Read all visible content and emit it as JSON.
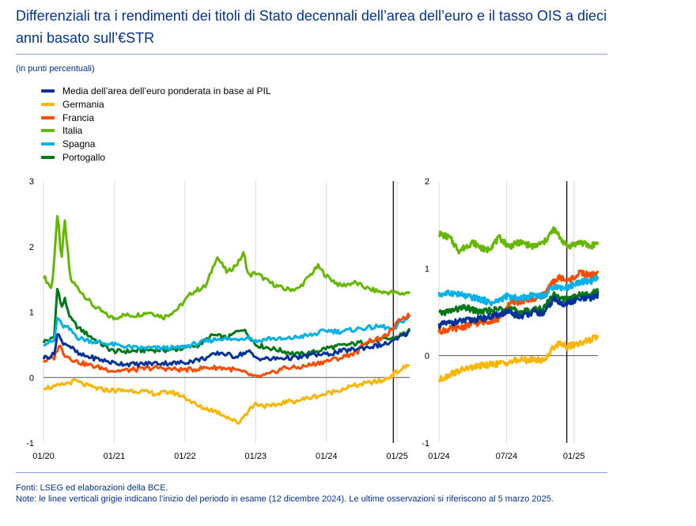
{
  "title": "Differenziali tra i rendimenti dei titoli di Stato decennali dell’area dell’euro e il tasso OIS a dieci anni basato sull’€STR",
  "units": "(in punti percentuali)",
  "legend": [
    {
      "label": "Media dell’area dell’euro ponderata in base al PIL",
      "color": "#003299"
    },
    {
      "label": "Germania",
      "color": "#ffb400"
    },
    {
      "label": "Francia",
      "color": "#ff4b00"
    },
    {
      "label": "Italia",
      "color": "#65b800"
    },
    {
      "label": "Spagna",
      "color": "#00b1ea"
    },
    {
      "label": "Portogallo",
      "color": "#007816"
    }
  ],
  "footer": {
    "sources": "Fonti: LSEG ed elaborazioni della BCE.",
    "note": "Note: le linee verticali grigie indicano l’inizio del periodo in esame (12 dicembre 2024). Le ultime osservazioni si riferiscono al 5 marzo 2025."
  },
  "chart_data": [
    {
      "type": "line",
      "panel": "left",
      "x_range": [
        "2020-01-01",
        "2025-03-05"
      ],
      "ylim": [
        -1,
        3
      ],
      "yticks": [
        "3",
        "2",
        "1",
        "0",
        "-1"
      ],
      "xticks": [
        "01/20",
        "01/21",
        "01/22",
        "01/23",
        "01/24",
        "01/25"
      ],
      "vline": "2024-12-12",
      "series": [
        {
          "name": "Italia",
          "color": "#65b800",
          "x": [
            2020.0,
            2020.12,
            2020.2,
            2020.25,
            2020.3,
            2020.38,
            2020.5,
            2020.7,
            2020.9,
            2021.0,
            2021.1,
            2021.3,
            2021.5,
            2021.7,
            2021.9,
            2022.1,
            2022.3,
            2022.45,
            2022.6,
            2022.75,
            2022.83,
            2022.9,
            2023.0,
            2023.2,
            2023.4,
            2023.6,
            2023.8,
            2023.88,
            2024.0,
            2024.2,
            2024.4,
            2024.6,
            2024.8,
            2024.95,
            2025.05,
            2025.18
          ],
          "values": [
            1.55,
            1.35,
            2.55,
            1.75,
            2.4,
            1.5,
            1.35,
            1.1,
            0.95,
            0.9,
            0.95,
            0.95,
            1.0,
            0.92,
            1.05,
            1.3,
            1.4,
            1.85,
            1.6,
            1.75,
            1.9,
            1.55,
            1.6,
            1.45,
            1.35,
            1.35,
            1.6,
            1.7,
            1.55,
            1.4,
            1.45,
            1.35,
            1.3,
            1.3,
            1.28,
            1.3
          ]
        },
        {
          "name": "Portogallo",
          "color": "#007816",
          "x": [
            2020.0,
            2020.15,
            2020.2,
            2020.25,
            2020.3,
            2020.38,
            2020.5,
            2020.7,
            2020.9,
            2021.0,
            2021.2,
            2021.5,
            2021.8,
            2022.0,
            2022.2,
            2022.4,
            2022.6,
            2022.8,
            2022.9,
            2023.0,
            2023.2,
            2023.4,
            2023.6,
            2023.8,
            2024.0,
            2024.3,
            2024.6,
            2024.8,
            2024.95,
            2025.05,
            2025.18
          ],
          "values": [
            0.55,
            0.6,
            1.45,
            1.05,
            1.2,
            0.9,
            0.75,
            0.6,
            0.45,
            0.4,
            0.4,
            0.42,
            0.42,
            0.45,
            0.5,
            0.65,
            0.6,
            0.75,
            0.65,
            0.5,
            0.45,
            0.4,
            0.35,
            0.38,
            0.45,
            0.5,
            0.55,
            0.58,
            0.6,
            0.65,
            0.72
          ]
        },
        {
          "name": "Spagna",
          "color": "#00b1ea",
          "x": [
            2020.0,
            2020.15,
            2020.2,
            2020.25,
            2020.35,
            2020.5,
            2020.7,
            2021.0,
            2021.3,
            2021.6,
            2021.9,
            2022.1,
            2022.3,
            2022.5,
            2022.7,
            2022.9,
            2023.0,
            2023.2,
            2023.4,
            2023.6,
            2023.8,
            2024.0,
            2024.2,
            2024.5,
            2024.8,
            2024.95,
            2025.05,
            2025.18
          ],
          "values": [
            0.52,
            0.55,
            0.95,
            0.8,
            0.75,
            0.6,
            0.55,
            0.5,
            0.45,
            0.45,
            0.45,
            0.5,
            0.55,
            0.6,
            0.58,
            0.62,
            0.55,
            0.6,
            0.58,
            0.62,
            0.65,
            0.72,
            0.7,
            0.75,
            0.78,
            0.72,
            0.85,
            0.92
          ]
        },
        {
          "name": "Francia",
          "color": "#ff4b00",
          "x": [
            2020.0,
            2020.15,
            2020.22,
            2020.3,
            2020.45,
            2020.6,
            2020.8,
            2021.0,
            2021.3,
            2021.6,
            2021.9,
            2022.1,
            2022.3,
            2022.5,
            2022.7,
            2022.9,
            2023.0,
            2023.2,
            2023.4,
            2023.6,
            2023.8,
            2024.0,
            2024.2,
            2024.45,
            2024.55,
            2024.8,
            2024.95,
            2025.05,
            2025.18
          ],
          "values": [
            0.25,
            0.3,
            0.5,
            0.35,
            0.25,
            0.2,
            0.15,
            0.1,
            0.12,
            0.15,
            0.12,
            0.12,
            0.15,
            0.15,
            0.12,
            0.05,
            0.0,
            0.05,
            0.15,
            0.15,
            0.2,
            0.25,
            0.3,
            0.4,
            0.55,
            0.6,
            0.75,
            0.9,
            0.95
          ]
        },
        {
          "name": "Media dell’area dell’euro ponderata in base al PIL",
          "color": "#003299",
          "x": [
            2020.0,
            2020.15,
            2020.2,
            2020.25,
            2020.35,
            2020.5,
            2020.7,
            2021.0,
            2021.3,
            2021.6,
            2021.9,
            2022.1,
            2022.3,
            2022.5,
            2022.7,
            2022.9,
            2023.0,
            2023.2,
            2023.4,
            2023.6,
            2023.8,
            2024.0,
            2024.2,
            2024.5,
            2024.8,
            2024.95,
            2025.05,
            2025.18
          ],
          "values": [
            0.3,
            0.35,
            0.7,
            0.55,
            0.5,
            0.35,
            0.3,
            0.22,
            0.2,
            0.22,
            0.22,
            0.25,
            0.3,
            0.38,
            0.32,
            0.4,
            0.3,
            0.28,
            0.3,
            0.3,
            0.35,
            0.35,
            0.4,
            0.45,
            0.5,
            0.55,
            0.62,
            0.7
          ]
        },
        {
          "name": "Germania",
          "color": "#ffb400",
          "x": [
            2020.0,
            2020.15,
            2020.3,
            2020.45,
            2020.6,
            2020.8,
            2021.0,
            2021.3,
            2021.6,
            2021.8,
            2022.0,
            2022.2,
            2022.4,
            2022.6,
            2022.75,
            2022.9,
            2023.0,
            2023.2,
            2023.4,
            2023.6,
            2023.8,
            2024.0,
            2024.3,
            2024.6,
            2024.8,
            2024.95,
            2025.05,
            2025.18
          ],
          "values": [
            -0.15,
            -0.15,
            -0.1,
            -0.05,
            -0.12,
            -0.18,
            -0.2,
            -0.2,
            -0.25,
            -0.22,
            -0.3,
            -0.45,
            -0.5,
            -0.6,
            -0.7,
            -0.5,
            -0.4,
            -0.45,
            -0.38,
            -0.35,
            -0.3,
            -0.25,
            -0.15,
            -0.08,
            -0.05,
            0.05,
            0.12,
            0.2
          ]
        }
      ]
    },
    {
      "type": "line",
      "panel": "right",
      "x_range": [
        "2024-01-01",
        "2025-03-05"
      ],
      "ylim": [
        -1,
        2
      ],
      "yticks": [
        "2",
        "1",
        "0",
        "-1"
      ],
      "xticks": [
        "01/24",
        "07/24",
        "01/25"
      ],
      "vline": "2024-12-12",
      "series": [
        {
          "name": "Italia",
          "color": "#65b800",
          "x": [
            2024.0,
            2024.08,
            2024.15,
            2024.25,
            2024.35,
            2024.45,
            2024.52,
            2024.6,
            2024.7,
            2024.78,
            2024.85,
            2024.9,
            2024.95,
            2025.05,
            2025.12,
            2025.18
          ],
          "values": [
            1.4,
            1.35,
            1.2,
            1.3,
            1.2,
            1.35,
            1.25,
            1.3,
            1.25,
            1.3,
            1.45,
            1.35,
            1.25,
            1.3,
            1.25,
            1.3
          ]
        },
        {
          "name": "Francia",
          "color": "#ff4b00",
          "x": [
            2024.0,
            2024.15,
            2024.3,
            2024.45,
            2024.52,
            2024.6,
            2024.7,
            2024.78,
            2024.85,
            2024.9,
            2024.95,
            2025.05,
            2025.12,
            2025.18
          ],
          "values": [
            0.28,
            0.32,
            0.38,
            0.42,
            0.6,
            0.62,
            0.65,
            0.7,
            0.85,
            0.9,
            0.85,
            0.95,
            0.92,
            0.95
          ]
        },
        {
          "name": "Spagna",
          "color": "#00b1ea",
          "x": [
            2024.0,
            2024.1,
            2024.2,
            2024.3,
            2024.4,
            2024.5,
            2024.6,
            2024.7,
            2024.78,
            2024.85,
            2024.9,
            2024.95,
            2025.05,
            2025.12,
            2025.18
          ],
          "values": [
            0.7,
            0.72,
            0.68,
            0.65,
            0.6,
            0.68,
            0.65,
            0.7,
            0.68,
            0.8,
            0.78,
            0.78,
            0.85,
            0.85,
            0.9
          ]
        },
        {
          "name": "Portogallo",
          "color": "#007816",
          "x": [
            2024.0,
            2024.1,
            2024.2,
            2024.3,
            2024.4,
            2024.5,
            2024.6,
            2024.7,
            2024.78,
            2024.85,
            2024.9,
            2024.95,
            2025.05,
            2025.12,
            2025.18
          ],
          "values": [
            0.48,
            0.52,
            0.55,
            0.5,
            0.52,
            0.55,
            0.5,
            0.52,
            0.55,
            0.7,
            0.65,
            0.65,
            0.7,
            0.7,
            0.75
          ]
        },
        {
          "name": "Media dell’area dell’euro ponderata in base al PIL",
          "color": "#003299",
          "x": [
            2024.0,
            2024.1,
            2024.2,
            2024.3,
            2024.4,
            2024.5,
            2024.6,
            2024.7,
            2024.78,
            2024.85,
            2024.9,
            2024.95,
            2025.05,
            2025.12,
            2025.18
          ],
          "values": [
            0.35,
            0.38,
            0.4,
            0.42,
            0.45,
            0.5,
            0.45,
            0.5,
            0.48,
            0.65,
            0.6,
            0.6,
            0.65,
            0.65,
            0.7
          ]
        },
        {
          "name": "Germania",
          "color": "#ffb400",
          "x": [
            2024.0,
            2024.1,
            2024.2,
            2024.3,
            2024.4,
            2024.5,
            2024.6,
            2024.7,
            2024.78,
            2024.85,
            2024.9,
            2024.95,
            2025.05,
            2025.12,
            2025.18
          ],
          "values": [
            -0.28,
            -0.2,
            -0.15,
            -0.12,
            -0.1,
            -0.08,
            -0.05,
            -0.05,
            -0.05,
            0.1,
            0.15,
            0.1,
            0.15,
            0.18,
            0.22
          ]
        }
      ]
    }
  ]
}
